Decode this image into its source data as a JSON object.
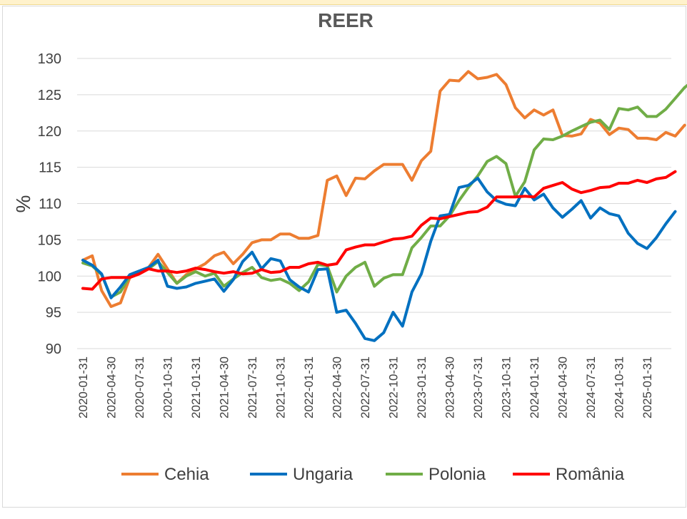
{
  "chart_data": {
    "type": "line",
    "title": "REER",
    "xlabel": "",
    "ylabel": "%",
    "ylim": [
      90,
      130
    ],
    "yticks": [
      90,
      95,
      100,
      105,
      110,
      115,
      120,
      125,
      130
    ],
    "xtick_labels": [
      "2020-01-31",
      "2020-04-30",
      "2020-07-31",
      "2020-10-31",
      "2021-01-31",
      "2021-04-30",
      "2021-07-31",
      "2021-10-31",
      "2022-01-31",
      "2022-04-30",
      "2022-07-31",
      "2022-10-31",
      "2023-01-31",
      "2023-04-30",
      "2023-07-31",
      "2023-10-31",
      "2024-01-31",
      "2024-04-30",
      "2024-07-31",
      "2024-10-31",
      "2025-01-31"
    ],
    "grid": "horizontal",
    "legend_position": "bottom",
    "series": [
      {
        "name": "Cehia",
        "color": "#ed7d31",
        "values": [
          102.2,
          102.8,
          98.0,
          95.8,
          96.3,
          99.8,
          100.5,
          101.2,
          103.0,
          101.0,
          99.0,
          100.2,
          101.0,
          101.7,
          102.8,
          103.3,
          101.7,
          103.0,
          104.6,
          105.0,
          105.0,
          105.8,
          105.8,
          105.2,
          105.2,
          105.6,
          113.2,
          113.8,
          111.1,
          113.5,
          113.4,
          114.5,
          115.4,
          115.4,
          115.4,
          113.2,
          115.9,
          117.2,
          125.5,
          127.0,
          126.9,
          128.2,
          127.2,
          127.4,
          127.8,
          126.4,
          123.2,
          121.8,
          122.9,
          122.2,
          122.9,
          119.4,
          119.3,
          119.6,
          121.6,
          121.1,
          119.5,
          120.4,
          120.2,
          119.0,
          119.0,
          118.8,
          119.8,
          119.3,
          120.8
        ]
      },
      {
        "name": "Ungaria",
        "color": "#0070c0",
        "values": [
          102.2,
          101.5,
          100.3,
          97.0,
          98.5,
          100.2,
          100.7,
          101.2,
          102.2,
          98.6,
          98.3,
          98.5,
          99.0,
          99.3,
          99.6,
          97.9,
          99.5,
          102.0,
          103.3,
          101.0,
          102.4,
          102.1,
          99.5,
          98.5,
          97.8,
          100.9,
          101.0,
          95.0,
          95.3,
          93.5,
          91.4,
          91.1,
          92.2,
          95.0,
          93.1,
          97.8,
          100.3,
          104.8,
          108.3,
          108.5,
          112.2,
          112.5,
          113.5,
          111.6,
          110.4,
          109.9,
          109.7,
          112.1,
          110.5,
          111.3,
          109.4,
          108.1,
          109.2,
          110.4,
          108.0,
          109.4,
          108.6,
          108.3,
          105.9,
          104.5,
          103.8,
          105.3,
          107.2,
          108.9
        ]
      },
      {
        "name": "Polonia",
        "color": "#70ad47",
        "values": [
          101.8,
          101.4,
          100.2,
          97.1,
          97.8,
          100.0,
          100.6,
          101.0,
          102.0,
          100.5,
          99.0,
          100.0,
          100.6,
          100.0,
          100.4,
          98.6,
          99.6,
          100.5,
          101.2,
          99.8,
          99.4,
          99.6,
          99.0,
          98.0,
          99.2,
          101.6,
          101.4,
          97.8,
          100.0,
          101.2,
          101.9,
          98.6,
          99.7,
          100.2,
          100.2,
          103.9,
          105.3,
          106.9,
          106.9,
          108.3,
          110.4,
          112.2,
          113.8,
          115.8,
          116.5,
          115.5,
          111.0,
          113.0,
          117.4,
          118.9,
          118.8,
          119.3,
          120.0,
          120.6,
          121.2,
          121.5,
          120.2,
          123.1,
          122.9,
          123.3,
          122.0,
          122.0,
          123.0,
          124.5,
          126.0,
          127.0
        ]
      },
      {
        "name": "România",
        "color": "#ff0000",
        "values": [
          98.3,
          98.2,
          99.6,
          99.8,
          99.8,
          99.8,
          100.3,
          101.0,
          100.7,
          100.7,
          100.5,
          100.7,
          101.1,
          100.9,
          100.6,
          100.4,
          100.6,
          100.3,
          100.4,
          100.9,
          100.5,
          100.6,
          101.2,
          101.2,
          101.7,
          101.9,
          101.5,
          101.7,
          103.6,
          104.0,
          104.3,
          104.3,
          104.7,
          105.1,
          105.2,
          105.5,
          107.0,
          108.0,
          107.9,
          108.2,
          108.5,
          108.8,
          108.9,
          109.5,
          110.9,
          110.9,
          110.9,
          111.0,
          110.9,
          112.1,
          112.5,
          112.9,
          112.0,
          111.5,
          111.8,
          112.2,
          112.3,
          112.8,
          112.8,
          113.2,
          112.9,
          113.4,
          113.6,
          114.4
        ]
      }
    ]
  }
}
